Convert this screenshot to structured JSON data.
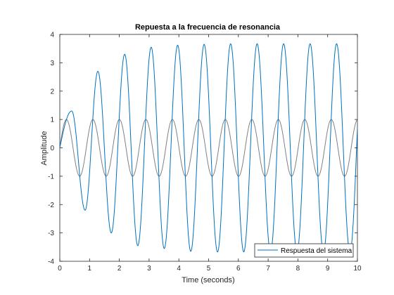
{
  "chart_data": {
    "type": "line",
    "title": "Repuesta a la frecuencia de resonancia",
    "xlabel": "Time (seconds)",
    "ylabel": "Amplitude",
    "xlim": [
      0,
      10
    ],
    "ylim": [
      -4,
      4
    ],
    "xticks": [
      "0",
      "1",
      "2",
      "3",
      "4",
      "5",
      "6",
      "7",
      "8",
      "9",
      "10"
    ],
    "yticks": [
      "4",
      "3",
      "2",
      "1",
      "0",
      "-1",
      "-2",
      "-3",
      "-4"
    ],
    "grid": false,
    "legend_location": "bottom-right",
    "series": [
      {
        "name": "Respuesta del sistema",
        "color": "#0072BD",
        "model": "envelope growing toward 3.7, sinusoid period ~0.89 s",
        "peaks": [
          {
            "x": 0.4,
            "y": 1.3
          },
          {
            "x": 0.85,
            "y": -2.2
          },
          {
            "x": 1.28,
            "y": 2.7
          },
          {
            "x": 1.73,
            "y": -3.0
          },
          {
            "x": 2.18,
            "y": 3.3
          },
          {
            "x": 2.62,
            "y": -3.45
          },
          {
            "x": 3.07,
            "y": 3.55
          },
          {
            "x": 3.51,
            "y": -3.55
          },
          {
            "x": 3.96,
            "y": 3.62
          },
          {
            "x": 4.4,
            "y": -3.65
          },
          {
            "x": 4.85,
            "y": 3.65
          },
          {
            "x": 5.3,
            "y": -3.67
          },
          {
            "x": 5.74,
            "y": 3.67
          },
          {
            "x": 6.18,
            "y": -3.67
          },
          {
            "x": 6.63,
            "y": 3.67
          },
          {
            "x": 7.08,
            "y": -3.67
          },
          {
            "x": 7.52,
            "y": 3.67
          },
          {
            "x": 7.97,
            "y": -3.67
          },
          {
            "x": 8.41,
            "y": 3.67
          },
          {
            "x": 8.86,
            "y": -3.67
          },
          {
            "x": 9.3,
            "y": 3.67
          },
          {
            "x": 9.75,
            "y": -3.67
          }
        ],
        "end_value": -1.2
      },
      {
        "color": "#808080",
        "model": "sin(2*pi*t/0.89)",
        "amplitude": 1.0,
        "period": 0.89
      }
    ]
  }
}
